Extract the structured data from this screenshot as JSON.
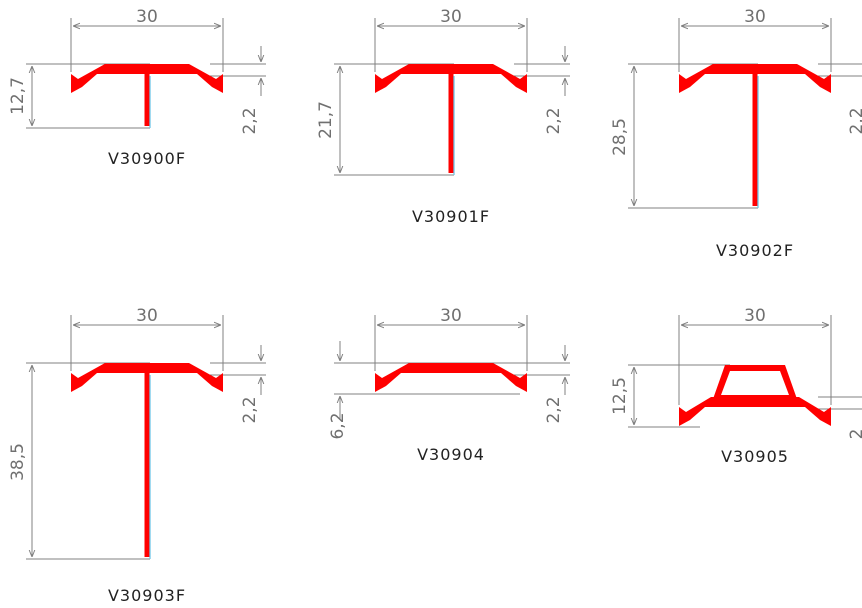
{
  "profiles": [
    {
      "code": "V30900F",
      "width": "30",
      "height": "12,7",
      "flange": "2,2"
    },
    {
      "code": "V30901F",
      "width": "30",
      "height": "21,7",
      "flange": "2,2"
    },
    {
      "code": "V30902F",
      "width": "30",
      "height": "28,5",
      "flange": "2,2"
    },
    {
      "code": "V30903F",
      "width": "30",
      "height": "38,5",
      "flange": "2,2"
    },
    {
      "code": "V30904",
      "width": "30",
      "height": "6,2",
      "flange": "2,2"
    },
    {
      "code": "V30905",
      "width": "30",
      "height": "12,5",
      "flange": "2"
    }
  ],
  "colors": {
    "profile": "#ff0000",
    "dimension": "#808080",
    "edge": "#6ec6e8"
  }
}
